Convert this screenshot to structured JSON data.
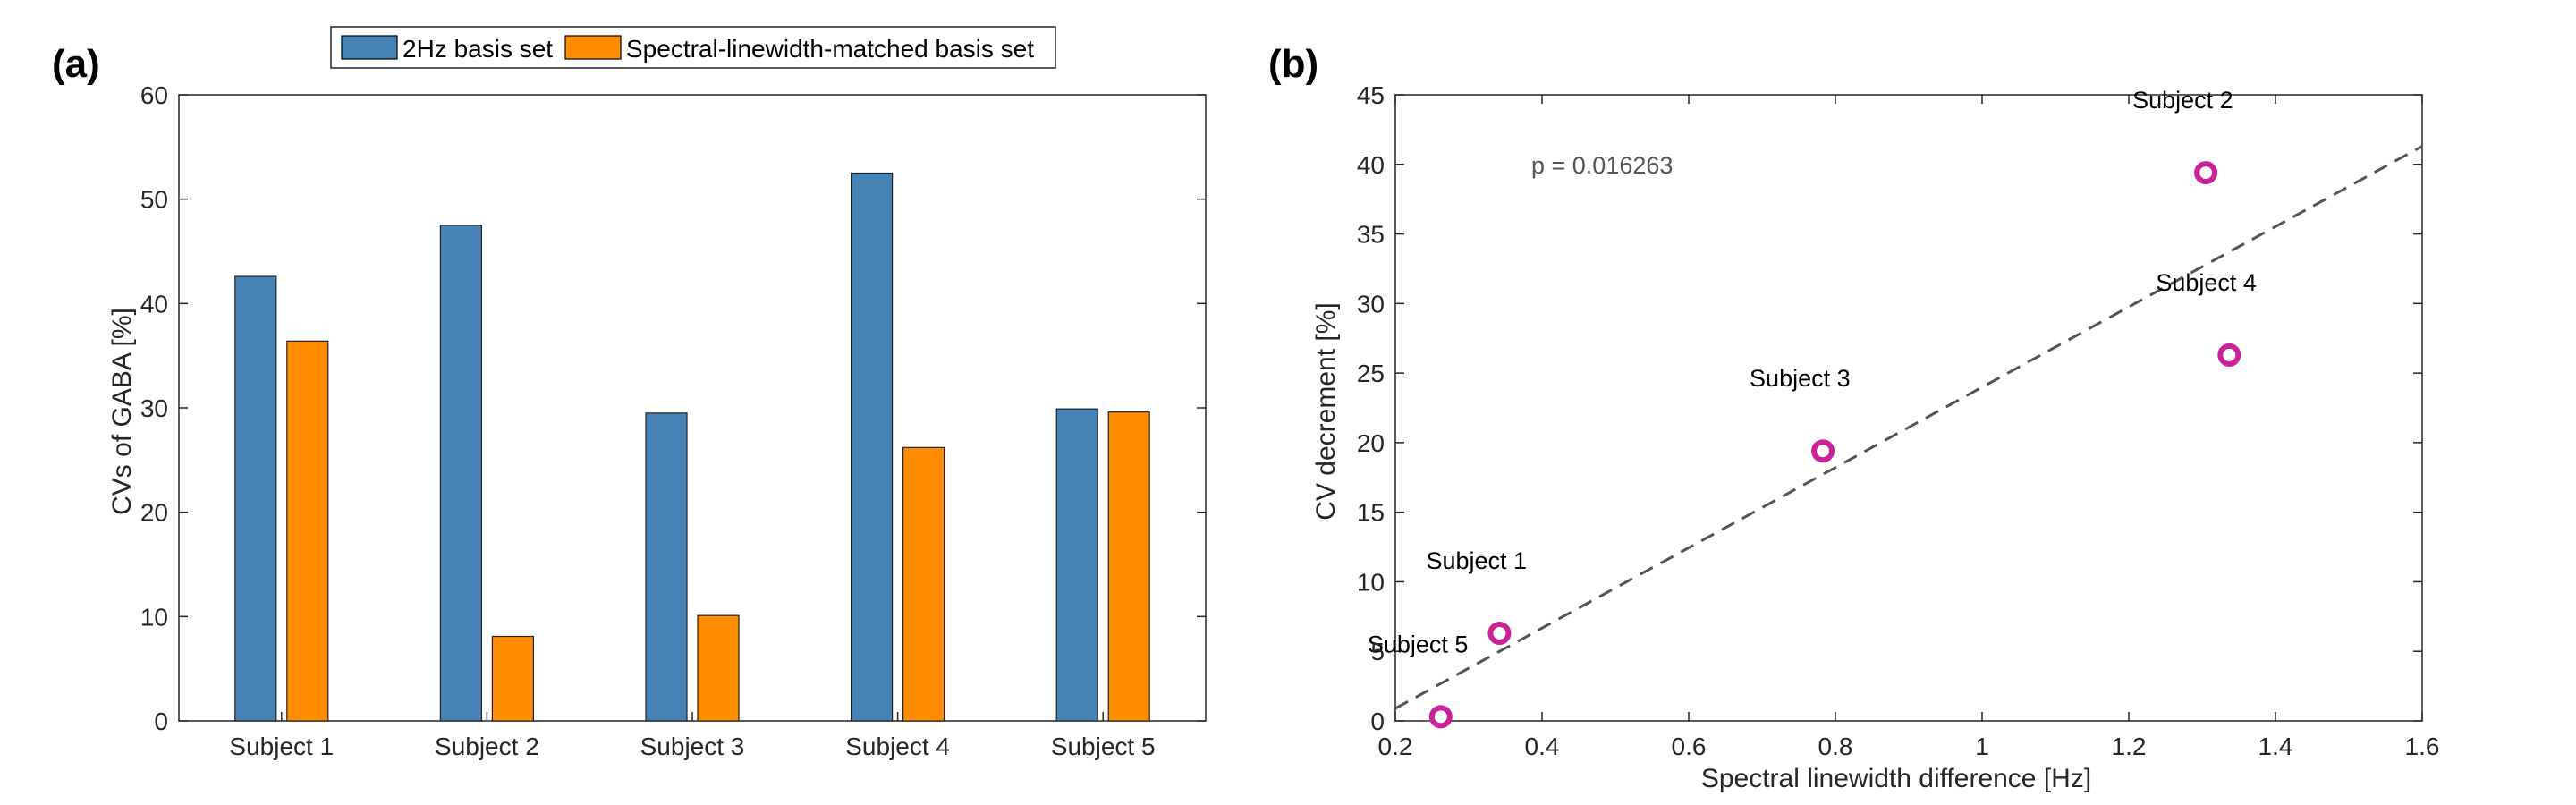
{
  "chart_data": [
    {
      "type": "bar",
      "panel_label": "(a)",
      "title": "",
      "xlabel": "",
      "ylabel": "CVs of GABA [%]",
      "categories": [
        "Subject 1",
        "Subject 2",
        "Subject 3",
        "Subject 4",
        "Subject 5"
      ],
      "series": [
        {
          "name": "2Hz basis set",
          "color": "#4682b4",
          "values": [
            42.6,
            47.5,
            29.5,
            52.5,
            29.9
          ]
        },
        {
          "name": "Spectral-linewidth-matched basis set",
          "color": "#ff8c00",
          "values": [
            36.4,
            8.1,
            10.1,
            26.2,
            29.6
          ]
        }
      ],
      "ylim": [
        0,
        60
      ],
      "yticks": [
        0,
        10,
        20,
        30,
        40,
        50,
        60
      ],
      "legend": "top-center"
    },
    {
      "type": "scatter",
      "panel_label": "(b)",
      "title": "",
      "xlabel": "Spectral linewidth difference [Hz]",
      "ylabel": "CV decrement [%]",
      "xlim": [
        0.2,
        1.6
      ],
      "ylim": [
        0,
        45
      ],
      "xticks": [
        0.2,
        0.4,
        0.6,
        0.8,
        1,
        1.2,
        1.4,
        1.6
      ],
      "yticks": [
        0,
        5,
        10,
        15,
        20,
        25,
        30,
        35,
        40,
        45
      ],
      "points": [
        {
          "label": "Subject 1",
          "x": 0.342,
          "y": 6.3
        },
        {
          "label": "Subject 2",
          "x": 1.305,
          "y": 39.4
        },
        {
          "label": "Subject 3",
          "x": 0.783,
          "y": 19.4
        },
        {
          "label": "Subject 4",
          "x": 1.337,
          "y": 26.3
        },
        {
          "label": "Subject 5",
          "x": 0.262,
          "y": 0.3
        }
      ],
      "marker_color": "#cc2299",
      "fit_line": {
        "x": [
          0.2,
          1.6
        ],
        "y": [
          0.9,
          41.3
        ],
        "style": "dashed",
        "color": "#555555"
      },
      "annotation": "p = 0.016263"
    }
  ]
}
